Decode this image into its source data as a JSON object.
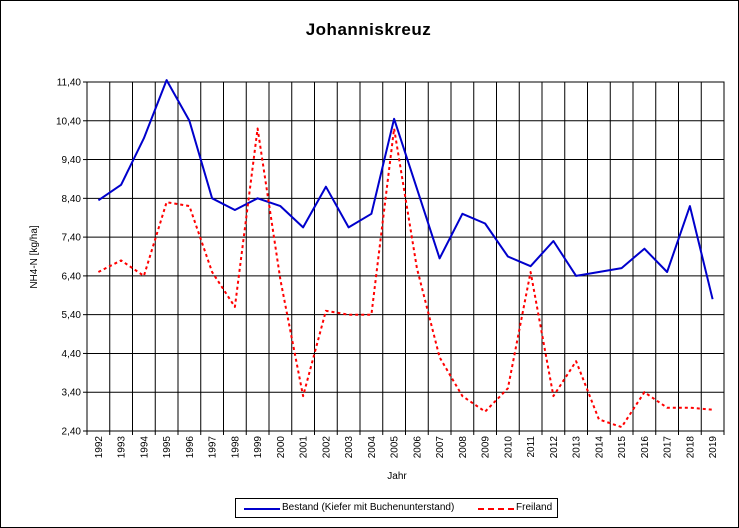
{
  "chart_data": {
    "type": "line",
    "title": "Johanniskreuz",
    "xlabel": "Jahr",
    "ylabel": "NH4-N [kg/ha]",
    "x": [
      1992,
      1993,
      1994,
      1995,
      1996,
      1997,
      1998,
      1999,
      2000,
      2001,
      2002,
      2003,
      2004,
      2005,
      2006,
      2007,
      2008,
      2009,
      2010,
      2011,
      2012,
      2013,
      2014,
      2015,
      2016,
      2017,
      2018,
      2019
    ],
    "yticks": [
      "2,40",
      "3,40",
      "4,40",
      "5,40",
      "6,40",
      "7,40",
      "8,40",
      "9,40",
      "10,40",
      "11,40"
    ],
    "ylim": [
      2.4,
      11.4
    ],
    "grid": true,
    "legend_position": "bottom",
    "series": [
      {
        "name": "Bestand (Kiefer mit Buchenunterstand)",
        "color": "#0000cc",
        "style": "solid",
        "values": [
          8.35,
          8.75,
          9.95,
          11.45,
          10.4,
          8.4,
          8.1,
          8.4,
          8.2,
          7.65,
          8.7,
          7.65,
          8.0,
          10.45,
          8.65,
          6.85,
          8.0,
          7.75,
          6.9,
          6.65,
          7.3,
          6.4,
          6.5,
          6.6,
          7.1,
          6.5,
          8.2,
          5.8
        ]
      },
      {
        "name": "Freiland",
        "color": "#ff0000",
        "style": "dashed",
        "values": [
          6.5,
          6.8,
          6.4,
          8.3,
          8.2,
          6.5,
          5.6,
          10.2,
          6.3,
          3.3,
          5.5,
          5.4,
          5.4,
          10.2,
          6.6,
          4.3,
          3.3,
          2.9,
          3.5,
          6.5,
          3.3,
          4.2,
          2.7,
          2.5,
          3.4,
          3.0,
          3.0,
          2.95
        ]
      }
    ]
  }
}
